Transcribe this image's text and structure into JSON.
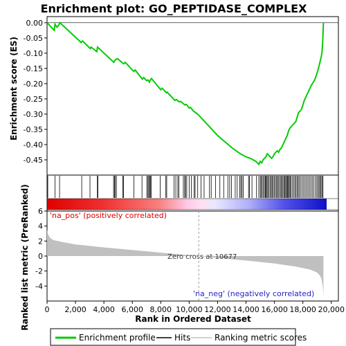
{
  "chart_data": {
    "type": "line",
    "title": "Enrichment plot: GO_PEPTIDASE_COMPLEX",
    "es_panel": {
      "ylabel": "Enrichment score (ES)",
      "ylim": [
        -0.5,
        0.02
      ],
      "yticks": [
        "0.00",
        "-0.05",
        "-0.10",
        "-0.15",
        "-0.20",
        "-0.25",
        "-0.30",
        "-0.35",
        "-0.40",
        "-0.45"
      ],
      "ytick_values": [
        0.0,
        -0.05,
        -0.1,
        -0.15,
        -0.2,
        -0.25,
        -0.3,
        -0.35,
        -0.4,
        -0.45
      ],
      "series": [
        {
          "name": "Enrichment profile",
          "color": "#00cc00",
          "x": [
            0,
            500,
            560,
            700,
            860,
            900,
            2400,
            2500,
            3050,
            3100,
            3500,
            3550,
            4700,
            4750,
            4850,
            4950,
            5400,
            5500,
            6100,
            6200,
            6700,
            6800,
            7000,
            7100,
            7200,
            7250,
            7300,
            7350,
            8000,
            8100,
            8400,
            8450,
            9000,
            9100,
            9300,
            9400,
            9700,
            9800,
            10000,
            10100,
            10300,
            10600,
            10700,
            11000,
            11500,
            12000,
            12500,
            13000,
            13300,
            13600,
            13800,
            14000,
            14300,
            14500,
            14700,
            14800,
            14900,
            15000,
            15100,
            15200,
            15300,
            15400,
            15500,
            15600,
            15700,
            15800,
            15900,
            16000,
            16100,
            16200,
            16300,
            16400,
            16500,
            16600,
            16700,
            16800,
            16900,
            17000,
            17100,
            17200,
            17300,
            17400,
            17500,
            17600,
            17700,
            17800,
            17900,
            18000,
            18100,
            18200,
            18300,
            18400,
            18500,
            18600,
            18700,
            18800,
            18900,
            19000,
            19100,
            19200,
            19300,
            19350,
            19400,
            19450
          ],
          "y": [
            0.0,
            -0.025,
            -0.005,
            -0.015,
            -0.005,
            0.0,
            -0.065,
            -0.06,
            -0.085,
            -0.08,
            -0.095,
            -0.08,
            -0.13,
            -0.125,
            -0.12,
            -0.118,
            -0.135,
            -0.13,
            -0.16,
            -0.155,
            -0.185,
            -0.18,
            -0.19,
            -0.188,
            -0.195,
            -0.19,
            -0.185,
            -0.183,
            -0.22,
            -0.215,
            -0.23,
            -0.228,
            -0.255,
            -0.252,
            -0.26,
            -0.258,
            -0.27,
            -0.268,
            -0.28,
            -0.278,
            -0.29,
            -0.3,
            -0.305,
            -0.32,
            -0.345,
            -0.37,
            -0.39,
            -0.41,
            -0.42,
            -0.43,
            -0.435,
            -0.44,
            -0.445,
            -0.45,
            -0.455,
            -0.46,
            -0.465,
            -0.455,
            -0.46,
            -0.45,
            -0.445,
            -0.44,
            -0.43,
            -0.435,
            -0.44,
            -0.445,
            -0.44,
            -0.43,
            -0.425,
            -0.42,
            -0.425,
            -0.415,
            -0.41,
            -0.4,
            -0.39,
            -0.38,
            -0.37,
            -0.355,
            -0.345,
            -0.34,
            -0.335,
            -0.33,
            -0.325,
            -0.31,
            -0.295,
            -0.29,
            -0.285,
            -0.27,
            -0.255,
            -0.245,
            -0.235,
            -0.225,
            -0.215,
            -0.205,
            -0.198,
            -0.19,
            -0.18,
            -0.165,
            -0.15,
            -0.13,
            -0.11,
            -0.095,
            -0.06,
            0.0
          ]
        }
      ]
    },
    "hits_panel": {
      "hit_positions": [
        50,
        560,
        880,
        2440,
        3020,
        3540,
        3580,
        4680,
        4740,
        4800,
        4880,
        5330,
        5380,
        6110,
        6680,
        7020,
        7100,
        7160,
        7220,
        7270,
        7340,
        7960,
        8360,
        8420,
        8940,
        9060,
        9200,
        9280,
        9590,
        9690,
        9740,
        9830,
        10000,
        10150,
        10350,
        10420,
        10600,
        10830,
        11050,
        11430,
        11550,
        11850,
        12160,
        12430,
        12720,
        12850,
        12980,
        13240,
        13380,
        13560,
        13640,
        13720,
        13800,
        14180,
        14240,
        14420,
        14740,
        14900,
        15000,
        15060,
        15140,
        15220,
        15300,
        15360,
        15420,
        15480,
        15540,
        15620,
        15700,
        15780,
        15840,
        15920,
        16000,
        16080,
        16160,
        16220,
        16300,
        16380,
        16460,
        16520,
        16600,
        16680,
        16740,
        16800,
        16860,
        16920,
        16980,
        17040,
        17100,
        17160,
        17260,
        17360,
        17440,
        17520,
        17600,
        17680,
        17760,
        17860,
        17960,
        18060,
        18160,
        18260,
        18360,
        18460,
        18560,
        18660,
        18760,
        18880,
        18980,
        19060,
        19140,
        19220,
        19280,
        19360,
        19420
      ]
    },
    "metric_panel": {
      "ylabel": "Ranked list metric (PreRanked)",
      "ylim": [
        -6,
        6
      ],
      "yticks": [
        "6",
        "4",
        "2",
        "0",
        "-2",
        "-4"
      ],
      "ytick_values": [
        6,
        4,
        2,
        0,
        -2,
        -4
      ],
      "metric_profile": {
        "x": [
          0,
          50,
          150,
          300,
          500,
          1000,
          2000,
          4000,
          6000,
          8000,
          10677,
          12000,
          14000,
          16000,
          17500,
          18500,
          19000,
          19200,
          19300,
          19400,
          19450
        ],
        "y": [
          3.5,
          3.0,
          2.6,
          2.3,
          2.1,
          1.9,
          1.55,
          1.15,
          0.8,
          0.45,
          0.0,
          -0.25,
          -0.6,
          -1.0,
          -1.4,
          -1.8,
          -2.2,
          -2.6,
          -3.0,
          -4.0,
          -5.3
        ]
      },
      "zero_cross_label": "Zero cross at 10677",
      "zero_cross_value": 10677,
      "pos_label": "'na_pos' (positively correlated)",
      "neg_label": "'na_neg' (negatively correlated)"
    },
    "xaxis": {
      "label": "Rank in Ordered Dataset",
      "xlim": [
        0,
        20500
      ],
      "xticks": [
        "0",
        "2,000",
        "4,000",
        "6,000",
        "8,000",
        "10,000",
        "12,000",
        "14,000",
        "16,000",
        "18,000",
        "20,000"
      ],
      "xtick_values": [
        0,
        2000,
        4000,
        6000,
        8000,
        10000,
        12000,
        14000,
        16000,
        18000,
        20000
      ],
      "n_ranks": 19450
    },
    "legend": {
      "placement": "bottom",
      "items": [
        {
          "label": "Enrichment profile",
          "color": "#00cc00"
        },
        {
          "label": "Hits",
          "color": "#000000"
        },
        {
          "label": "Ranking metric scores",
          "color": "#c0c0c0"
        }
      ]
    }
  }
}
